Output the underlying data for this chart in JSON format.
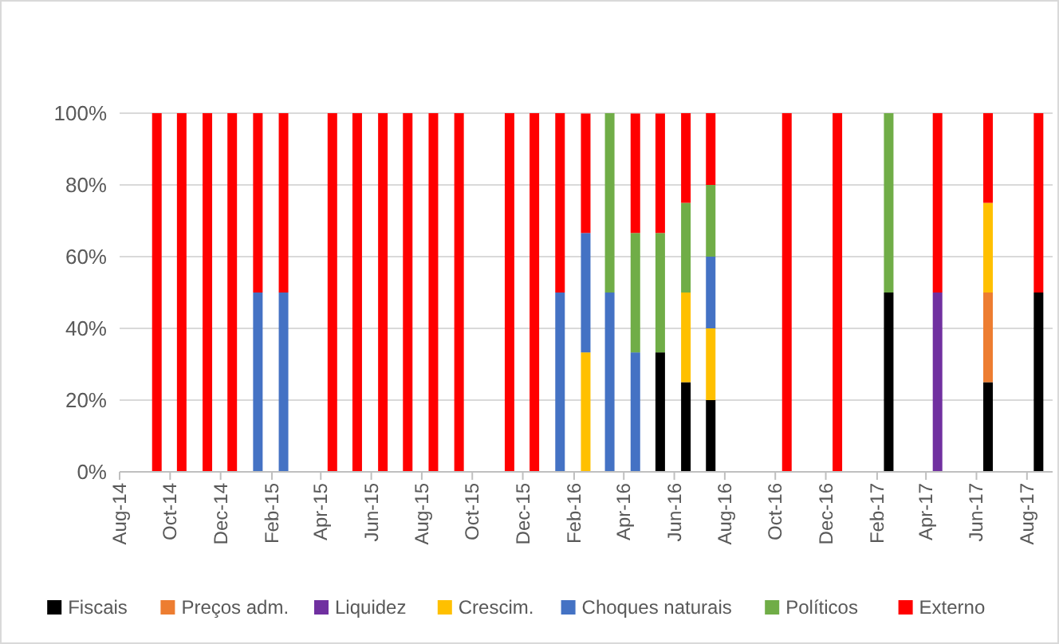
{
  "chart_data": {
    "type": "bar",
    "stacked": true,
    "x": [
      "2014-09-15",
      "2014-10-15",
      "2014-11-15",
      "2014-12-15",
      "2015-01-15",
      "2015-02-15",
      "2015-04-15",
      "2015-05-15",
      "2015-06-15",
      "2015-07-15",
      "2015-08-15",
      "2015-09-15",
      "2015-11-15",
      "2015-12-15",
      "2016-01-15",
      "2016-02-15",
      "2016-03-15",
      "2016-04-15",
      "2016-05-15",
      "2016-06-15",
      "2016-07-15",
      "2016-10-15",
      "2016-12-15",
      "2017-02-15",
      "2017-04-15",
      "2017-06-15",
      "2017-08-15"
    ],
    "series": [
      {
        "name": "Fiscais",
        "color": "#000000",
        "values": [
          null,
          null,
          null,
          null,
          null,
          null,
          null,
          null,
          null,
          null,
          null,
          null,
          null,
          null,
          null,
          null,
          null,
          null,
          33.3,
          25,
          20,
          null,
          null,
          50,
          null,
          25,
          50
        ]
      },
      {
        "name": "Preços adm.",
        "color": "#ed7d31",
        "values": [
          null,
          null,
          null,
          null,
          null,
          null,
          null,
          null,
          null,
          null,
          null,
          null,
          null,
          null,
          null,
          null,
          null,
          null,
          null,
          null,
          null,
          null,
          null,
          null,
          null,
          25,
          null
        ]
      },
      {
        "name": "Liquidez",
        "color": "#7030a0",
        "values": [
          null,
          null,
          null,
          null,
          null,
          null,
          null,
          null,
          null,
          null,
          null,
          null,
          null,
          null,
          null,
          null,
          null,
          null,
          null,
          null,
          null,
          null,
          null,
          null,
          50,
          null,
          null
        ]
      },
      {
        "name": "Crescim.",
        "color": "#ffc000",
        "values": [
          null,
          null,
          null,
          null,
          null,
          null,
          null,
          null,
          null,
          null,
          null,
          null,
          null,
          null,
          null,
          33.3,
          null,
          null,
          null,
          25,
          20,
          null,
          null,
          null,
          null,
          25,
          null
        ]
      },
      {
        "name": "Choques naturais",
        "color": "#4472c4",
        "values": [
          null,
          null,
          null,
          null,
          50,
          50,
          null,
          null,
          null,
          null,
          null,
          null,
          null,
          null,
          50,
          33.3,
          50,
          33.3,
          null,
          null,
          20,
          null,
          null,
          null,
          null,
          null,
          null
        ]
      },
      {
        "name": "Políticos",
        "color": "#70ad47",
        "values": [
          null,
          null,
          null,
          null,
          null,
          null,
          null,
          null,
          null,
          null,
          null,
          null,
          null,
          null,
          null,
          null,
          50,
          33.3,
          33.3,
          25,
          20,
          null,
          null,
          50,
          null,
          null,
          null
        ]
      },
      {
        "name": "Externo",
        "color": "#ff0000",
        "values": [
          100,
          100,
          100,
          100,
          50,
          50,
          100,
          100,
          100,
          100,
          100,
          100,
          100,
          100,
          50,
          33.3,
          null,
          33.3,
          33.3,
          25,
          20,
          100,
          100,
          null,
          50,
          25,
          50
        ]
      }
    ],
    "xlim": [
      "2014-08-01",
      "2017-09-01"
    ],
    "xticks": [
      {
        "value": "2014-08-01",
        "label": "Aug-14"
      },
      {
        "value": "2014-10-01",
        "label": "Oct-14"
      },
      {
        "value": "2014-12-01",
        "label": "Dec-14"
      },
      {
        "value": "2015-02-01",
        "label": "Feb-15"
      },
      {
        "value": "2015-04-01",
        "label": "Apr-15"
      },
      {
        "value": "2015-06-01",
        "label": "Jun-15"
      },
      {
        "value": "2015-08-01",
        "label": "Aug-15"
      },
      {
        "value": "2015-10-01",
        "label": "Oct-15"
      },
      {
        "value": "2015-12-01",
        "label": "Dec-15"
      },
      {
        "value": "2016-02-01",
        "label": "Feb-16"
      },
      {
        "value": "2016-04-01",
        "label": "Apr-16"
      },
      {
        "value": "2016-06-01",
        "label": "Jun-16"
      },
      {
        "value": "2016-08-01",
        "label": "Aug-16"
      },
      {
        "value": "2016-10-01",
        "label": "Oct-16"
      },
      {
        "value": "2016-12-01",
        "label": "Dec-16"
      },
      {
        "value": "2017-02-01",
        "label": "Feb-17"
      },
      {
        "value": "2017-04-01",
        "label": "Apr-17"
      },
      {
        "value": "2017-06-01",
        "label": "Jun-17"
      },
      {
        "value": "2017-08-01",
        "label": "Aug-17"
      }
    ],
    "ylim": [
      0,
      100
    ],
    "yticks": [
      {
        "value": 0,
        "label": "0%"
      },
      {
        "value": 20,
        "label": "20%"
      },
      {
        "value": 40,
        "label": "40%"
      },
      {
        "value": 60,
        "label": "60%"
      },
      {
        "value": 80,
        "label": "80%"
      },
      {
        "value": 100,
        "label": "100%"
      }
    ],
    "grid": "y",
    "legend": "bottom"
  }
}
